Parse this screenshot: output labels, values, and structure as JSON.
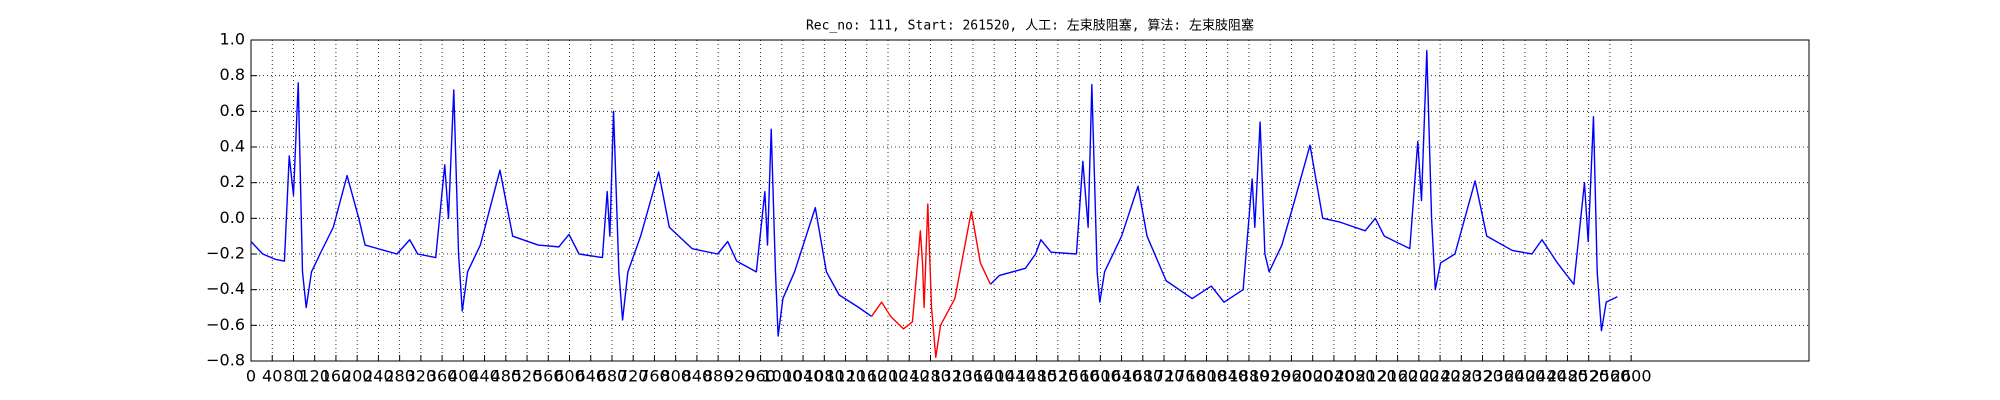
{
  "chart_data": {
    "type": "line",
    "title": "Rec_no: 111, Start: 261520, 人工: 左束肢阻塞, 算法: 左束肢阻塞",
    "x": [
      0,
      22,
      46,
      63,
      72,
      80,
      89,
      97,
      104,
      114,
      130,
      155,
      181,
      203,
      215,
      251,
      275,
      299,
      314,
      348,
      365,
      372,
      382,
      391,
      398,
      408,
      432,
      469,
      493,
      541,
      580,
      599,
      618,
      662,
      671,
      676,
      683,
      693,
      700,
      710,
      734,
      768,
      788,
      831,
      879,
      898,
      915,
      952,
      968,
      973,
      980,
      988,
      993,
      1002,
      1024,
      1063,
      1084,
      1108,
      1145,
      1169,
      1188,
      1205,
      1229,
      1246,
      1261,
      1265,
      1268,
      1275,
      1282,
      1290,
      1299,
      1326,
      1357,
      1374,
      1393,
      1410,
      1459,
      1478,
      1488,
      1507,
      1555,
      1567,
      1577,
      1584,
      1594,
      1599,
      1608,
      1640,
      1671,
      1688,
      1724,
      1773,
      1809,
      1833,
      1869,
      1886,
      1891,
      1901,
      1910,
      1918,
      1942,
      1966,
      1995,
      2019,
      2050,
      2099,
      2118,
      2135,
      2183,
      2198,
      2205,
      2215,
      2224,
      2231,
      2241,
      2268,
      2306,
      2328,
      2376,
      2413,
      2432,
      2461,
      2492,
      2512,
      2519,
      2529,
      2536,
      2544,
      2553,
      2574
    ],
    "series": [
      {
        "color": "#0000ff",
        "values": [
          -0.13,
          -0.2,
          -0.23,
          -0.24,
          0.35,
          0.13,
          0.76,
          -0.3,
          -0.5,
          -0.3,
          -0.2,
          -0.05,
          0.24,
          0.0,
          -0.15,
          -0.18,
          -0.2,
          -0.12,
          -0.2,
          -0.22,
          0.3,
          0.0,
          0.72,
          -0.2,
          -0.52,
          -0.3,
          -0.15,
          0.27,
          -0.1,
          -0.15,
          -0.16,
          -0.09,
          -0.2,
          -0.22,
          0.15,
          -0.1,
          0.6,
          -0.3,
          -0.57,
          -0.3,
          -0.1,
          0.26,
          -0.05,
          -0.17,
          -0.2,
          -0.13,
          -0.24,
          -0.3,
          0.15,
          -0.15,
          0.5,
          -0.3,
          -0.66,
          -0.45,
          -0.3,
          0.06,
          -0.3,
          -0.43,
          -0.5,
          -0.55,
          null,
          null,
          null,
          null,
          null,
          null,
          null,
          null,
          null,
          null,
          null,
          null,
          null,
          null,
          -0.37,
          -0.32,
          -0.28,
          -0.2,
          -0.12,
          -0.19,
          -0.2,
          0.32,
          -0.05,
          0.75,
          -0.3,
          -0.47,
          -0.3,
          -0.1,
          0.18,
          -0.1,
          -0.35,
          -0.45,
          -0.38,
          -0.47,
          -0.4,
          0.22,
          -0.05,
          0.54,
          -0.2,
          -0.3,
          -0.15,
          0.1,
          0.41,
          0.0,
          -0.02,
          -0.07,
          0.0,
          -0.1,
          -0.17,
          0.43,
          0.1,
          0.94,
          0.0,
          -0.4,
          -0.25,
          -0.2,
          0.21,
          -0.1,
          -0.18,
          -0.2,
          -0.12,
          -0.25,
          -0.37,
          0.2,
          -0.13,
          0.57,
          -0.3,
          -0.63,
          -0.47,
          -0.44
        ]
      },
      {
        "color": "#ff0000",
        "values": [
          null,
          null,
          null,
          null,
          null,
          null,
          null,
          null,
          null,
          null,
          null,
          null,
          null,
          null,
          null,
          null,
          null,
          null,
          null,
          null,
          null,
          null,
          null,
          null,
          null,
          null,
          null,
          null,
          null,
          null,
          null,
          null,
          null,
          null,
          null,
          null,
          null,
          null,
          null,
          null,
          null,
          null,
          null,
          null,
          null,
          null,
          null,
          null,
          null,
          null,
          null,
          null,
          null,
          null,
          null,
          null,
          null,
          null,
          null,
          -0.55,
          -0.47,
          -0.55,
          -0.62,
          -0.58,
          -0.07,
          -0.25,
          -0.5,
          0.08,
          -0.5,
          -0.78,
          -0.6,
          -0.45,
          0.04,
          -0.25,
          -0.37,
          null,
          null,
          null,
          null,
          null,
          null,
          null,
          null,
          null,
          null,
          null,
          null,
          null,
          null,
          null,
          null,
          null,
          null,
          null,
          null,
          null,
          null,
          null,
          null,
          null,
          null,
          null,
          null,
          null,
          null,
          null,
          null,
          null,
          null,
          null,
          null,
          null,
          null,
          null,
          null,
          null,
          null,
          null,
          null,
          null,
          null,
          null,
          null,
          null,
          null,
          null,
          null,
          null,
          null,
          null
        ]
      }
    ],
    "xlim": [
      0,
      2935
    ],
    "xticks": [
      0,
      40,
      80,
      120,
      160,
      200,
      240,
      280,
      320,
      360,
      400,
      440,
      480,
      520,
      560,
      600,
      640,
      680,
      720,
      760,
      800,
      840,
      880,
      920,
      960,
      1000,
      1040,
      1080,
      1120,
      1160,
      1200,
      1240,
      1280,
      1320,
      1360,
      1400,
      1440,
      1480,
      1520,
      1560,
      1600,
      1640,
      1680,
      1720,
      1760,
      1800,
      1840,
      1880,
      1920,
      1960,
      2000,
      2040,
      2080,
      2120,
      2160,
      2200,
      2240,
      2280,
      2320,
      2360,
      2400,
      2440,
      2480,
      2520,
      2560,
      2600
    ],
    "ylim": [
      -0.8,
      1.0
    ],
    "yticks": [
      {
        "value": -0.8,
        "label": "−0.8"
      },
      {
        "value": -0.6,
        "label": "−0.6"
      },
      {
        "value": -0.4,
        "label": "−0.4"
      },
      {
        "value": -0.2,
        "label": "−0.2"
      },
      {
        "value": 0,
        "label": "0.0"
      },
      0.2,
      0.4,
      0.6,
      0.8,
      {
        "value": 1,
        "label": "1.0"
      }
    ],
    "grid": true
  }
}
